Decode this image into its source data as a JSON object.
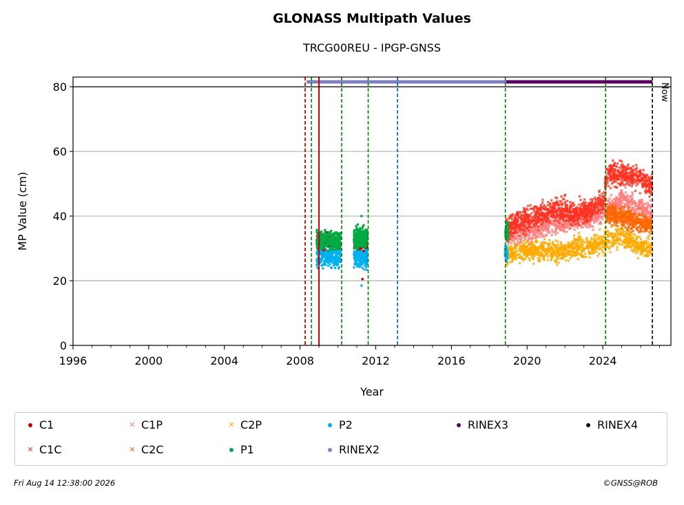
{
  "header": {
    "title": "GLONASS Multipath Values",
    "subtitle": "TRCG00REU - IPGP-GNSS"
  },
  "footer": {
    "timestamp": "Fri Aug 14 12:38:00 2026",
    "copyright": "©GNSS@ROB"
  },
  "chart_data": {
    "type": "scatter",
    "title": "GLONASS Multipath Values",
    "subtitle": "TRCG00REU - IPGP-GNSS",
    "xlabel": "Year",
    "ylabel": "MP Value (cm)",
    "xlim": [
      1996,
      2027.6
    ],
    "ylim": [
      0,
      83
    ],
    "x_ticks": [
      1996,
      2000,
      2004,
      2008,
      2012,
      2016,
      2020,
      2024
    ],
    "x_tick_labels": [
      "1996",
      "2000",
      "2004",
      "2008",
      "2012",
      "2016",
      "2020",
      "2024"
    ],
    "y_ticks": [
      0,
      20,
      40,
      60,
      80
    ],
    "y_tick_labels": [
      "0",
      "20",
      "40",
      "60",
      "80"
    ],
    "grid": "horizontal",
    "legend_position": "below",
    "now_label": "Now",
    "now_year": 2026.62,
    "series": [
      {
        "name": "C1",
        "color": "#c00000",
        "marker": "dot",
        "points": [
          [
            2008.9,
            31.5
          ],
          [
            2009.4,
            32
          ],
          [
            2010.0,
            33
          ],
          [
            2011.2,
            32
          ],
          [
            2011.5,
            31.5
          ],
          [
            2011.3,
            20.5
          ]
        ]
      },
      {
        "name": "C1C",
        "color": "#ff3322",
        "marker": "x",
        "trend": [
          [
            2018.9,
            36
          ],
          [
            2019.5,
            38
          ],
          [
            2020.5,
            40
          ],
          [
            2021.5,
            42
          ],
          [
            2022.5,
            41
          ],
          [
            2023.5,
            42
          ],
          [
            2024.05,
            45
          ],
          [
            2024.2,
            53
          ],
          [
            2025.0,
            53
          ],
          [
            2025.8,
            52
          ],
          [
            2026.6,
            49
          ]
        ]
      },
      {
        "name": "C1P",
        "color": "#ff7f7f",
        "marker": "x",
        "trend": [
          [
            2018.9,
            34
          ],
          [
            2019.5,
            35
          ],
          [
            2020.5,
            36
          ],
          [
            2021.5,
            38
          ],
          [
            2022.5,
            39
          ],
          [
            2023.5,
            40
          ],
          [
            2024.2,
            42
          ],
          [
            2025.0,
            45
          ],
          [
            2025.8,
            43
          ],
          [
            2026.6,
            41
          ]
        ]
      },
      {
        "name": "C2C",
        "color": "#ff6600",
        "marker": "x",
        "trend": [
          [
            2024.15,
            40
          ],
          [
            2025.0,
            40
          ],
          [
            2025.8,
            38
          ],
          [
            2026.6,
            37
          ]
        ]
      },
      {
        "name": "C2P",
        "color": "#ffaa00",
        "marker": "x",
        "trend": [
          [
            2018.9,
            28
          ],
          [
            2019.5,
            29
          ],
          [
            2020.5,
            29.5
          ],
          [
            2021.5,
            29
          ],
          [
            2022.5,
            30
          ],
          [
            2023.5,
            31
          ],
          [
            2024.2,
            32
          ],
          [
            2025.0,
            34
          ],
          [
            2025.8,
            31
          ],
          [
            2026.6,
            30
          ]
        ]
      },
      {
        "name": "P1",
        "color": "#00aa44",
        "marker": "dot",
        "points": [
          [
            2008.95,
            32
          ],
          [
            2009.3,
            33
          ],
          [
            2009.7,
            32.5
          ],
          [
            2010.05,
            32
          ],
          [
            2010.9,
            33
          ],
          [
            2011.2,
            34
          ],
          [
            2011.5,
            35
          ],
          [
            2011.25,
            40
          ],
          [
            2018.9,
            36
          ],
          [
            2018.95,
            37
          ]
        ]
      },
      {
        "name": "P2",
        "color": "#00b0f0",
        "marker": "dot",
        "points": [
          [
            2008.95,
            27
          ],
          [
            2009.3,
            27.5
          ],
          [
            2009.7,
            28
          ],
          [
            2010.05,
            27
          ],
          [
            2010.9,
            27
          ],
          [
            2011.2,
            27.5
          ],
          [
            2011.5,
            28
          ],
          [
            2011.25,
            18.5
          ],
          [
            2018.85,
            28
          ],
          [
            2018.95,
            29
          ]
        ]
      },
      {
        "name": "RINEX2",
        "color": "#8080c0",
        "marker": "dot",
        "span": [
          2008.35,
          2018.9
        ]
      },
      {
        "name": "RINEX3",
        "color": "#5c0060",
        "marker": "dot",
        "span": [
          2018.9,
          2026.62
        ]
      },
      {
        "name": "RINEX4",
        "color": "#1a0020",
        "marker": "dot"
      }
    ],
    "event_lines": [
      {
        "x": 2008.27,
        "color": "#008000",
        "style": "dashed"
      },
      {
        "x": 2008.27,
        "color": "#d00000",
        "style": "dashed"
      },
      {
        "x": 2008.6,
        "color": "#008000",
        "style": "dashed"
      },
      {
        "x": 2009.0,
        "color": "#c00000",
        "style": "solid"
      },
      {
        "x": 2010.2,
        "color": "#008000",
        "style": "dashed"
      },
      {
        "x": 2011.6,
        "color": "#008000",
        "style": "dashed"
      },
      {
        "x": 2013.15,
        "color": "#0055cc",
        "style": "dashed"
      },
      {
        "x": 2018.85,
        "color": "#008000",
        "style": "dashed"
      },
      {
        "x": 2024.15,
        "color": "#d00000",
        "style": "dashed"
      },
      {
        "x": 2024.15,
        "color": "#008000",
        "style": "dashed"
      },
      {
        "x": 2026.62,
        "color": "#000000",
        "style": "dashed"
      }
    ]
  },
  "legend": [
    {
      "label": "C1",
      "color": "#c00000",
      "marker": "dot"
    },
    {
      "label": "C1P",
      "color": "#ff7f7f",
      "marker": "x"
    },
    {
      "label": "C2P",
      "color": "#ffaa00",
      "marker": "x"
    },
    {
      "label": "P2",
      "color": "#00b0f0",
      "marker": "dot"
    },
    {
      "label": "RINEX3",
      "color": "#5c0060",
      "marker": "dot"
    },
    {
      "label": "RINEX4",
      "color": "#1a0020",
      "marker": "dot"
    },
    {
      "label": "C1C",
      "color": "#ff3322",
      "marker": "x"
    },
    {
      "label": "C2C",
      "color": "#ff6600",
      "marker": "x"
    },
    {
      "label": "P1",
      "color": "#00aa44",
      "marker": "dot"
    },
    {
      "label": "RINEX2",
      "color": "#8080c0",
      "marker": "dot"
    }
  ]
}
